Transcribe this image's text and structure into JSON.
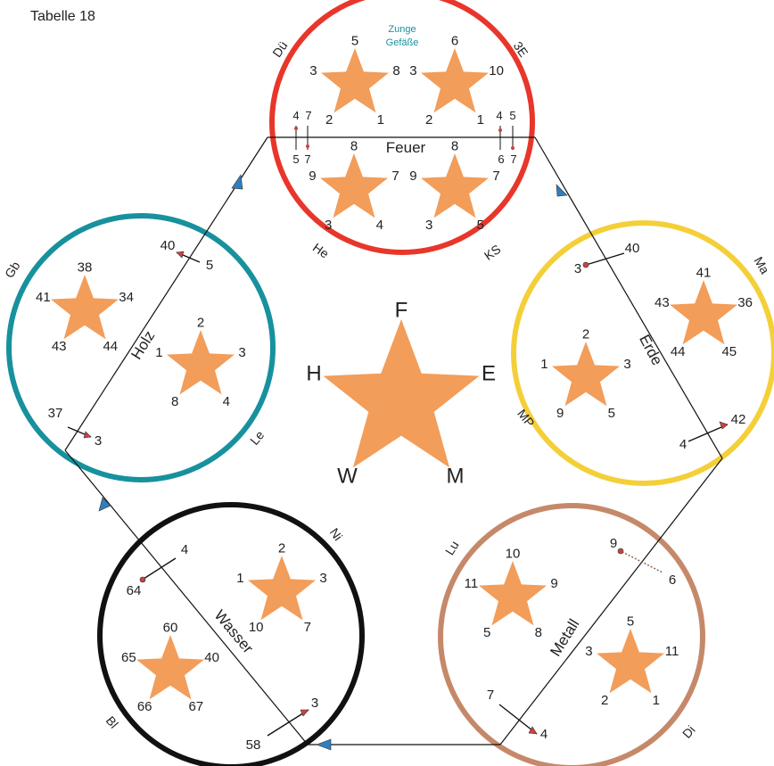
{
  "title": "Tabelle 18",
  "colors": {
    "star": "#f29d5a",
    "feuer": "#e8362a",
    "holz": "#17919e",
    "erde": "#f4cf38",
    "metall": "#c5896a",
    "wasser": "#111111",
    "cycle_arrow": "#2f7fbf",
    "needle_dot": "#d04040"
  },
  "center_star": {
    "top": "F",
    "right": "E",
    "bottom_right": "M",
    "bottom_left": "W",
    "left": "H"
  },
  "elements": {
    "feuer": {
      "name": "Feuer",
      "note_line1": "Zunge",
      "note_line2": "Gefäße",
      "organs": [
        "Dü",
        "3E",
        "He",
        "KS"
      ],
      "stars": [
        {
          "top": "5",
          "left": "3",
          "right": "8",
          "bottom_left": "2",
          "bottom_right": "1"
        },
        {
          "top": "6",
          "left": "3",
          "right": "10",
          "bottom_left": "2",
          "bottom_right": "1"
        },
        {
          "top": "8",
          "left": "9",
          "right": "7",
          "bottom_left": "3",
          "bottom_right": "4"
        },
        {
          "top": "8",
          "left": "9",
          "right": "7",
          "bottom_left": "3",
          "bottom_right": "5"
        }
      ],
      "pairs": [
        {
          "top": "4",
          "bottom": "5"
        },
        {
          "top": "7",
          "bottom": "7"
        },
        {
          "top": "4",
          "bottom": "6"
        },
        {
          "top": "5",
          "bottom": "7"
        }
      ]
    },
    "holz": {
      "name": "Holz",
      "organs": [
        "Gb",
        "Le"
      ],
      "stars": [
        {
          "top": "38",
          "left": "41",
          "right": "34",
          "bottom_left": "43",
          "bottom_right": "44"
        },
        {
          "top": "2",
          "left": "1",
          "right": "3",
          "bottom_left": "8",
          "bottom_right": "4"
        }
      ],
      "needles": [
        {
          "from": "40",
          "to": "5"
        },
        {
          "from": "37",
          "to": "3"
        }
      ]
    },
    "erde": {
      "name": "Erde",
      "organs": [
        "Ma",
        "MP"
      ],
      "stars": [
        {
          "top": "41",
          "left": "43",
          "right": "36",
          "bottom_left": "44",
          "bottom_right": "45"
        },
        {
          "top": "2",
          "left": "1",
          "right": "3",
          "bottom_left": "9",
          "bottom_right": "5"
        }
      ],
      "needles": [
        {
          "from": "3",
          "to": "40"
        },
        {
          "from": "4",
          "to": "42"
        }
      ]
    },
    "metall": {
      "name": "Metall",
      "organs": [
        "Lu",
        "Di"
      ],
      "stars": [
        {
          "top": "10",
          "left": "11",
          "right": "9",
          "bottom_left": "5",
          "bottom_right": "8"
        },
        {
          "top": "5",
          "left": "3",
          "right": "11",
          "bottom_left": "2",
          "bottom_right": "1"
        }
      ],
      "needles": [
        {
          "from": "9",
          "to": "6"
        },
        {
          "from": "7",
          "to": "4"
        }
      ]
    },
    "wasser": {
      "name": "Wasser",
      "organs": [
        "Ni",
        "Bl"
      ],
      "stars": [
        {
          "top": "2",
          "left": "1",
          "right": "3",
          "bottom_left": "10",
          "bottom_right": "7"
        },
        {
          "top": "60",
          "left": "65",
          "right": "40",
          "bottom_left": "66",
          "bottom_right": "67"
        }
      ],
      "needles": [
        {
          "from": "64",
          "to": "4"
        },
        {
          "from": "58",
          "to": "3"
        }
      ]
    }
  }
}
